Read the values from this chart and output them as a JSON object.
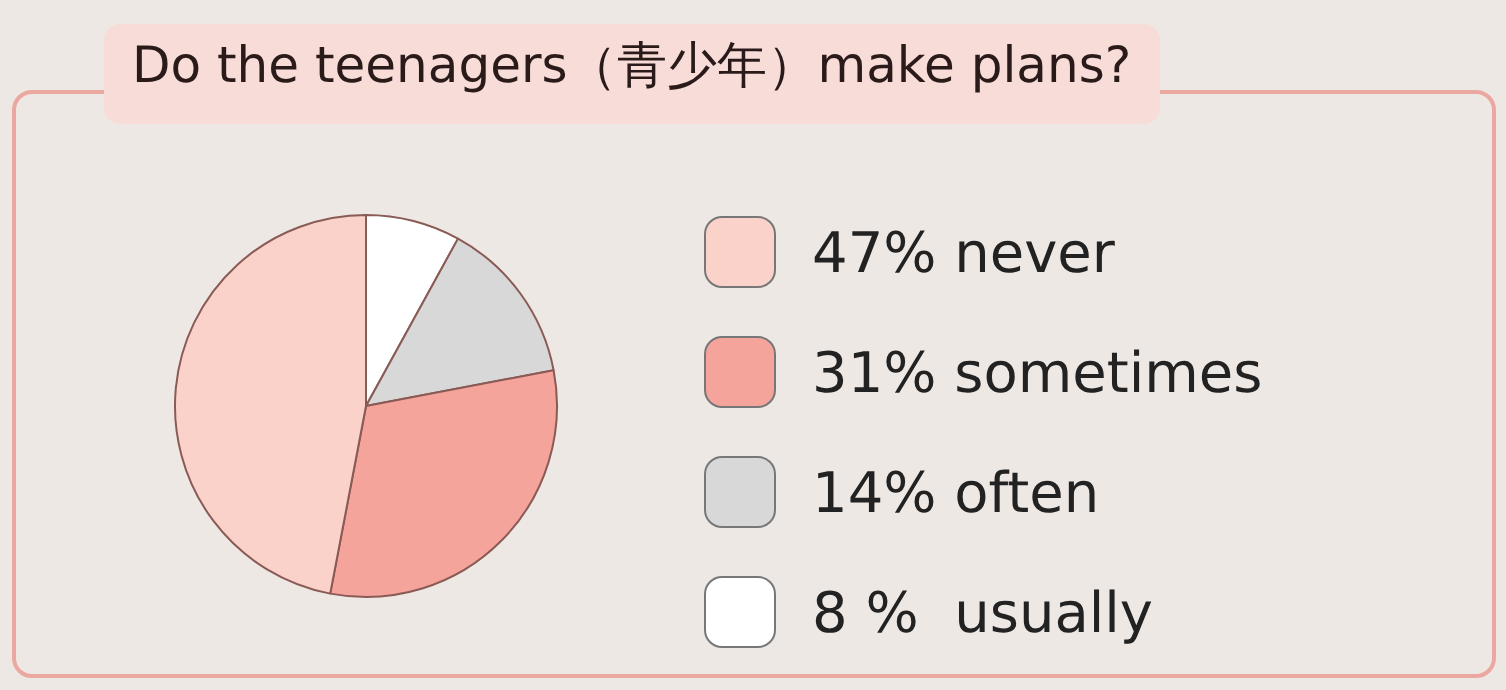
{
  "chart_data": {
    "type": "pie",
    "title": "Do the teenagers（青少年）make plans?",
    "categories": [
      "47% never",
      "31% sometimes",
      "14% often",
      "8 %  usually"
    ],
    "values": [
      47,
      31,
      14,
      8
    ],
    "colors": [
      "#fad2ca",
      "#f5a49c",
      "#d8d8d8",
      "#ffffff"
    ],
    "legend": "right"
  }
}
